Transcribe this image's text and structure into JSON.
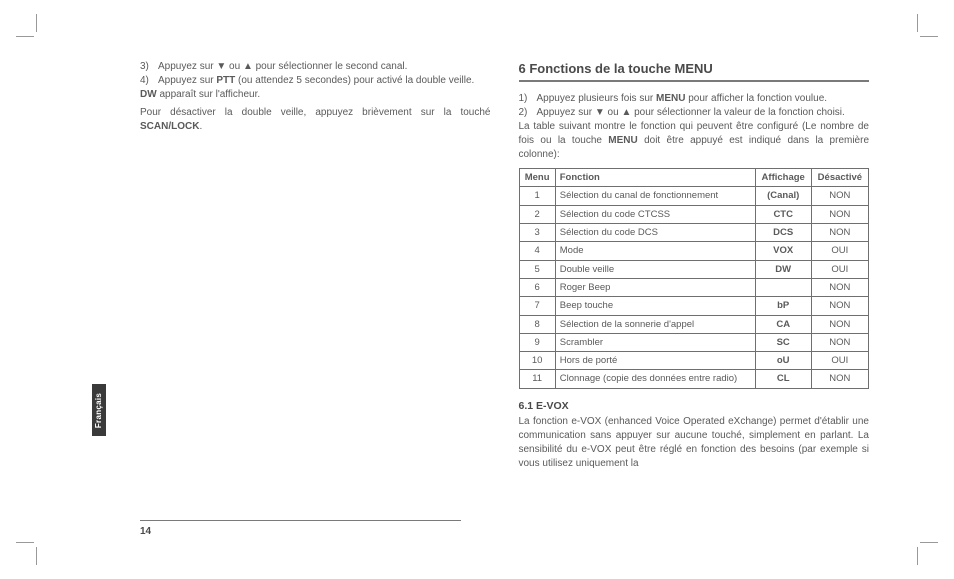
{
  "cropmarks": true,
  "left_col": {
    "items": [
      {
        "n": "3)",
        "t_pre": "Appuyez sur ▼ ou ▲ pour sélectionner le second canal."
      },
      {
        "n": "4)",
        "t_parts": [
          "Appuyez sur ",
          {
            "b": "PTT"
          },
          " (ou attendez 5 secondes) pour activé la double veille."
        ]
      }
    ],
    "line_dw_parts": [
      {
        "b": "DW"
      },
      " apparaît sur l'afficheur."
    ],
    "line_off_parts": [
      "Pour désactiver la double veille, appuyez brièvement sur la touché ",
      {
        "b": "SCAN/LOCK"
      },
      "."
    ]
  },
  "right_col": {
    "heading": "6 Fonctions de la touche MENU",
    "items": [
      {
        "n": "1)",
        "t_parts": [
          "Appuyez plusieurs fois sur ",
          {
            "b": "MENU"
          },
          " pour afficher la fonction voulue."
        ]
      },
      {
        "n": "2)",
        "t_parts": [
          "Appuyez sur ▼ ou ▲ pour sélectionner la valeur de la fonction choisi."
        ]
      }
    ],
    "intro_parts": [
      "La table suivant montre le fonction qui peuvent être configuré (Le nombre de fois ou la touche ",
      {
        "b": "MENU"
      },
      " doit être appuyé est indiqué dans la première colonne):"
    ],
    "table": {
      "headers": [
        "Menu",
        "Fonction",
        "Affichage",
        "Désactivé"
      ],
      "rows": [
        [
          "1",
          "Sélection du canal de fonctionnement",
          "(Canal)",
          "NON"
        ],
        [
          "2",
          "Sélection du code CTCSS",
          "CTC",
          "NON"
        ],
        [
          "3",
          "Sélection du code DCS",
          "DCS",
          "NON"
        ],
        [
          "4",
          "Mode",
          "VOX",
          "OUI"
        ],
        [
          "5",
          "Double veille",
          "DW",
          "OUI"
        ],
        [
          "6",
          "Roger Beep",
          "",
          "NON"
        ],
        [
          "7",
          "Beep touche",
          "bP",
          "NON"
        ],
        [
          "8",
          "Sélection de la sonnerie d'appel",
          "CA",
          "NON"
        ],
        [
          "9",
          "Scrambler",
          "SC",
          "NON"
        ],
        [
          "10",
          "Hors de porté",
          "oU",
          "OUI"
        ],
        [
          "11",
          "Clonnage (copie des données entre radio)",
          "CL",
          "NON"
        ]
      ]
    },
    "sub_heading": "6.1 E-VOX",
    "sub_text": "La fonction e-VOX (enhanced Voice Operated eXchange) permet d'établir une communication sans appuyer sur aucune touché, simplement en parlant. La sensibilité du e-VOX peut être réglé en fonction des besoins (par exemple si vous utilisez uniquement la"
  },
  "lang_tab": "Français",
  "page_number": "14"
}
